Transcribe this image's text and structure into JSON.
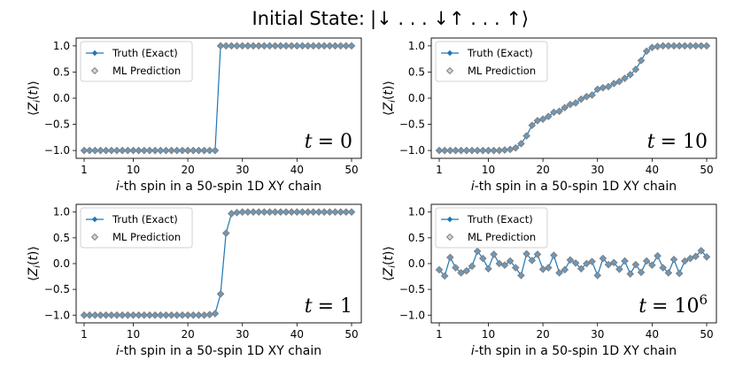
{
  "figure_title": "Initial State:",
  "figure_title_math": "|↓ . . . ↓↑ . . . ↑⟩",
  "chart_data": [
    {
      "type": "line",
      "panel": "top-left",
      "time_label": "t = 0",
      "xlabel_italic": "i",
      "xlabel_rest": "-th spin in a 50-spin 1D XY chain",
      "ylabel": "⟨Z",
      "ylabel_sub": "i",
      "ylabel_tail": "(t)⟩",
      "xlim": [
        1,
        50
      ],
      "ylim": [
        -1.15,
        1.15
      ],
      "xticks": [
        1,
        10,
        20,
        30,
        40,
        50
      ],
      "yticks": [
        1.0,
        0.5,
        0.0,
        -0.5,
        -1.0
      ],
      "ytick_labels": [
        "1.0",
        "0.5",
        "0.0",
        "−0.5",
        "−1.0"
      ],
      "legend": [
        "Truth (Exact)",
        "ML Prediction"
      ],
      "series": [
        {
          "name": "Truth (Exact)",
          "values": [
            -1,
            -1,
            -1,
            -1,
            -1,
            -1,
            -1,
            -1,
            -1,
            -1,
            -1,
            -1,
            -1,
            -1,
            -1,
            -1,
            -1,
            -1,
            -1,
            -1,
            -1,
            -1,
            -1,
            -1,
            -1,
            1,
            1,
            1,
            1,
            1,
            1,
            1,
            1,
            1,
            1,
            1,
            1,
            1,
            1,
            1,
            1,
            1,
            1,
            1,
            1,
            1,
            1,
            1,
            1,
            1
          ]
        },
        {
          "name": "ML Prediction",
          "values": [
            -1,
            -1,
            -1,
            -1,
            -1,
            -1,
            -1,
            -1,
            -1,
            -1,
            -1,
            -1,
            -1,
            -1,
            -1,
            -1,
            -1,
            -1,
            -1,
            -1,
            -1,
            -1,
            -1,
            -1,
            -1,
            1,
            1,
            1,
            1,
            1,
            1,
            1,
            1,
            1,
            1,
            1,
            1,
            1,
            1,
            1,
            1,
            1,
            1,
            1,
            1,
            1,
            1,
            1,
            1,
            1
          ]
        }
      ]
    },
    {
      "type": "line",
      "panel": "top-right",
      "time_label": "t = 10",
      "xlabel_italic": "i",
      "xlabel_rest": "-th spin in a 50-spin 1D XY chain",
      "ylabel": "⟨Z",
      "ylabel_sub": "i",
      "ylabel_tail": "(t)⟩",
      "xlim": [
        1,
        50
      ],
      "ylim": [
        -1.15,
        1.15
      ],
      "xticks": [
        1,
        10,
        20,
        30,
        40,
        50
      ],
      "yticks": [
        1.0,
        0.5,
        0.0,
        -0.5,
        -1.0
      ],
      "ytick_labels": [
        "1.0",
        "0.5",
        "0.0",
        "−0.5",
        "−1.0"
      ],
      "legend": [
        "Truth (Exact)",
        "ML Prediction"
      ],
      "series": [
        {
          "name": "Truth (Exact)",
          "values": [
            -1,
            -1,
            -1,
            -1,
            -1,
            -1,
            -1,
            -1,
            -1,
            -1,
            -1,
            -1,
            -0.99,
            -0.98,
            -0.95,
            -0.87,
            -0.72,
            -0.52,
            -0.43,
            -0.4,
            -0.35,
            -0.27,
            -0.25,
            -0.18,
            -0.12,
            -0.09,
            -0.02,
            0.03,
            0.06,
            0.17,
            0.2,
            0.22,
            0.28,
            0.32,
            0.38,
            0.45,
            0.55,
            0.72,
            0.9,
            0.97,
            0.99,
            1,
            1,
            1,
            1,
            1,
            1,
            1,
            1,
            1
          ]
        },
        {
          "name": "ML Prediction",
          "values": [
            -1,
            -1,
            -1,
            -1,
            -1,
            -1,
            -1,
            -1,
            -1,
            -1,
            -1,
            -1,
            -0.99,
            -0.98,
            -0.95,
            -0.87,
            -0.72,
            -0.52,
            -0.43,
            -0.4,
            -0.35,
            -0.27,
            -0.25,
            -0.18,
            -0.12,
            -0.09,
            -0.02,
            0.03,
            0.06,
            0.17,
            0.2,
            0.22,
            0.28,
            0.32,
            0.38,
            0.45,
            0.55,
            0.72,
            0.9,
            0.97,
            0.99,
            1,
            1,
            1,
            1,
            1,
            1,
            1,
            1,
            1
          ]
        }
      ]
    },
    {
      "type": "line",
      "panel": "bottom-left",
      "time_label": "t = 1",
      "xlabel_italic": "i",
      "xlabel_rest": "-th spin in a 50-spin 1D XY chain",
      "ylabel": "⟨Z",
      "ylabel_sub": "i",
      "ylabel_tail": "(t)⟩",
      "xlim": [
        1,
        50
      ],
      "ylim": [
        -1.15,
        1.15
      ],
      "xticks": [
        1,
        10,
        20,
        30,
        40,
        50
      ],
      "yticks": [
        1.0,
        0.5,
        0.0,
        -0.5,
        -1.0
      ],
      "ytick_labels": [
        "1.0",
        "0.5",
        "0.0",
        "−0.5",
        "−1.0"
      ],
      "legend": [
        "Truth (Exact)",
        "ML Prediction"
      ],
      "series": [
        {
          "name": "Truth (Exact)",
          "values": [
            -1,
            -1,
            -1,
            -1,
            -1,
            -1,
            -1,
            -1,
            -1,
            -1,
            -1,
            -1,
            -1,
            -1,
            -1,
            -1,
            -1,
            -1,
            -1,
            -1,
            -1,
            -1,
            -1,
            -0.99,
            -0.97,
            -0.59,
            0.59,
            0.97,
            0.99,
            1,
            1,
            1,
            1,
            1,
            1,
            1,
            1,
            1,
            1,
            1,
            1,
            1,
            1,
            1,
            1,
            1,
            1,
            1,
            1,
            1
          ]
        },
        {
          "name": "ML Prediction",
          "values": [
            -1,
            -1,
            -1,
            -1,
            -1,
            -1,
            -1,
            -1,
            -1,
            -1,
            -1,
            -1,
            -1,
            -1,
            -1,
            -1,
            -1,
            -1,
            -1,
            -1,
            -1,
            -1,
            -1,
            -0.99,
            -0.97,
            -0.59,
            0.59,
            0.97,
            0.99,
            1,
            1,
            1,
            1,
            1,
            1,
            1,
            1,
            1,
            1,
            1,
            1,
            1,
            1,
            1,
            1,
            1,
            1,
            1,
            1,
            1
          ]
        }
      ]
    },
    {
      "type": "line",
      "panel": "bottom-right",
      "time_label": "t = 10",
      "time_label_exp": "6",
      "xlabel_italic": "i",
      "xlabel_rest": "-th spin in a 50-spin 1D XY chain",
      "ylabel": "⟨Z",
      "ylabel_sub": "i",
      "ylabel_tail": "(t)⟩",
      "xlim": [
        1,
        50
      ],
      "ylim": [
        -1.15,
        1.15
      ],
      "xticks": [
        1,
        10,
        20,
        30,
        40,
        50
      ],
      "yticks": [
        1.0,
        0.5,
        0.0,
        -0.5,
        -1.0
      ],
      "ytick_labels": [
        "1.0",
        "0.5",
        "0.0",
        "−0.5",
        "−1.0"
      ],
      "legend": [
        "Truth (Exact)",
        "ML Prediction"
      ],
      "series": [
        {
          "name": "Truth (Exact)",
          "values": [
            -0.12,
            -0.24,
            0.12,
            -0.08,
            -0.18,
            -0.14,
            -0.05,
            0.24,
            0.1,
            -0.1,
            0.18,
            0.0,
            -0.03,
            0.05,
            -0.08,
            -0.23,
            0.19,
            0.06,
            0.18,
            -0.11,
            -0.08,
            0.16,
            -0.18,
            -0.12,
            0.07,
            0.01,
            -0.1,
            0.0,
            0.04,
            -0.23,
            0.1,
            -0.02,
            0.02,
            -0.11,
            0.05,
            -0.2,
            -0.02,
            -0.17,
            0.05,
            -0.03,
            0.15,
            -0.08,
            -0.18,
            0.08,
            -0.19,
            0.05,
            0.1,
            0.14,
            0.25,
            0.13
          ]
        },
        {
          "name": "ML Prediction",
          "values": [
            -0.12,
            -0.24,
            0.12,
            -0.08,
            -0.18,
            -0.14,
            -0.05,
            0.24,
            0.1,
            -0.1,
            0.18,
            0.0,
            -0.03,
            0.05,
            -0.08,
            -0.23,
            0.19,
            0.06,
            0.18,
            -0.11,
            -0.08,
            0.16,
            -0.18,
            -0.12,
            0.07,
            0.01,
            -0.1,
            0.0,
            0.04,
            -0.23,
            0.1,
            -0.02,
            0.02,
            -0.11,
            0.05,
            -0.2,
            -0.02,
            -0.17,
            0.05,
            -0.03,
            0.15,
            -0.08,
            -0.18,
            0.08,
            -0.19,
            0.05,
            0.1,
            0.14,
            0.25,
            0.13
          ]
        }
      ]
    }
  ],
  "colors": {
    "truth": "#1f77b4",
    "prediction_edge": "#7f7f7f",
    "prediction_fill": "#a9b6c2"
  }
}
